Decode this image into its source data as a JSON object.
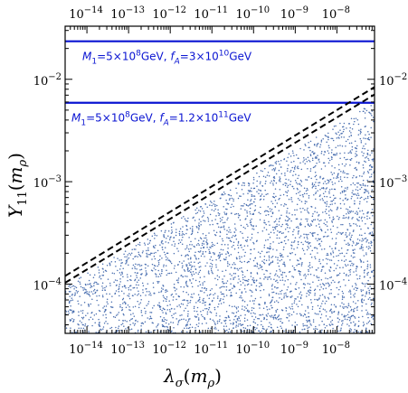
{
  "chart_data": {
    "type": "scatter",
    "xscale": "log",
    "yscale": "log",
    "xlim": [
      3e-15,
      8e-08
    ],
    "ylim": [
      3.3e-05,
      0.033
    ],
    "xlabel": {
      "main": "λ",
      "sub": "σ",
      "arg": "m",
      "argsub": "ρ"
    },
    "ylabel": {
      "main": "Y",
      "sub": "11",
      "arg": "m",
      "argsub": "ρ"
    },
    "x_ticks": [
      {
        "value": 1e-14,
        "base": "10",
        "exp": "−14"
      },
      {
        "value": 1e-13,
        "base": "10",
        "exp": "−13"
      },
      {
        "value": 1e-12,
        "base": "10",
        "exp": "−12"
      },
      {
        "value": 1e-11,
        "base": "10",
        "exp": "−11"
      },
      {
        "value": 1e-10,
        "base": "10",
        "exp": "−10"
      },
      {
        "value": 1e-09,
        "base": "10",
        "exp": "−9"
      },
      {
        "value": 1e-08,
        "base": "10",
        "exp": "−8"
      }
    ],
    "y_ticks": [
      {
        "value": 0.0001,
        "base": "10",
        "exp": "−4"
      },
      {
        "value": 0.001,
        "base": "10",
        "exp": "−3"
      },
      {
        "value": 0.01,
        "base": "10",
        "exp": "−2"
      }
    ],
    "scatter_region": {
      "description_color": "#4a6fb0",
      "upper_boundary": [
        [
          3e-15,
          9.5e-05
        ],
        [
          8e-08,
          0.006
        ]
      ],
      "ymin": 3.3e-05
    },
    "series": [
      {
        "kind": "hline",
        "y": 0.0235,
        "color": "#0a14d2",
        "style": "solid",
        "label_parts": {
          "m": "M",
          "msub": "1",
          "mval": "=5×10",
          "mexp": "8",
          "mu": "GeV, ",
          "f": "f",
          "fsub": "A",
          "fval": "=3×10",
          "fexp": "10",
          "fu": "GeV"
        }
      },
      {
        "kind": "hline",
        "y": 0.0059,
        "color": "#0a14d2",
        "style": "solid",
        "label_parts": {
          "m": "M",
          "msub": "1",
          "mval": "=5×10",
          "mexp": "8",
          "mu": "GeV, ",
          "f": "f",
          "fsub": "A",
          "fval": "=1.2×10",
          "fexp": "11",
          "fu": "GeV"
        }
      },
      {
        "kind": "line",
        "style": "dashed",
        "color": "#000000",
        "points": [
          [
            3e-15,
            0.00012
          ],
          [
            8e-08,
            0.0084
          ]
        ]
      },
      {
        "kind": "line",
        "style": "dashed",
        "color": "#000000",
        "points": [
          [
            3e-15,
            0.000103
          ],
          [
            8e-08,
            0.0071
          ]
        ]
      }
    ]
  }
}
